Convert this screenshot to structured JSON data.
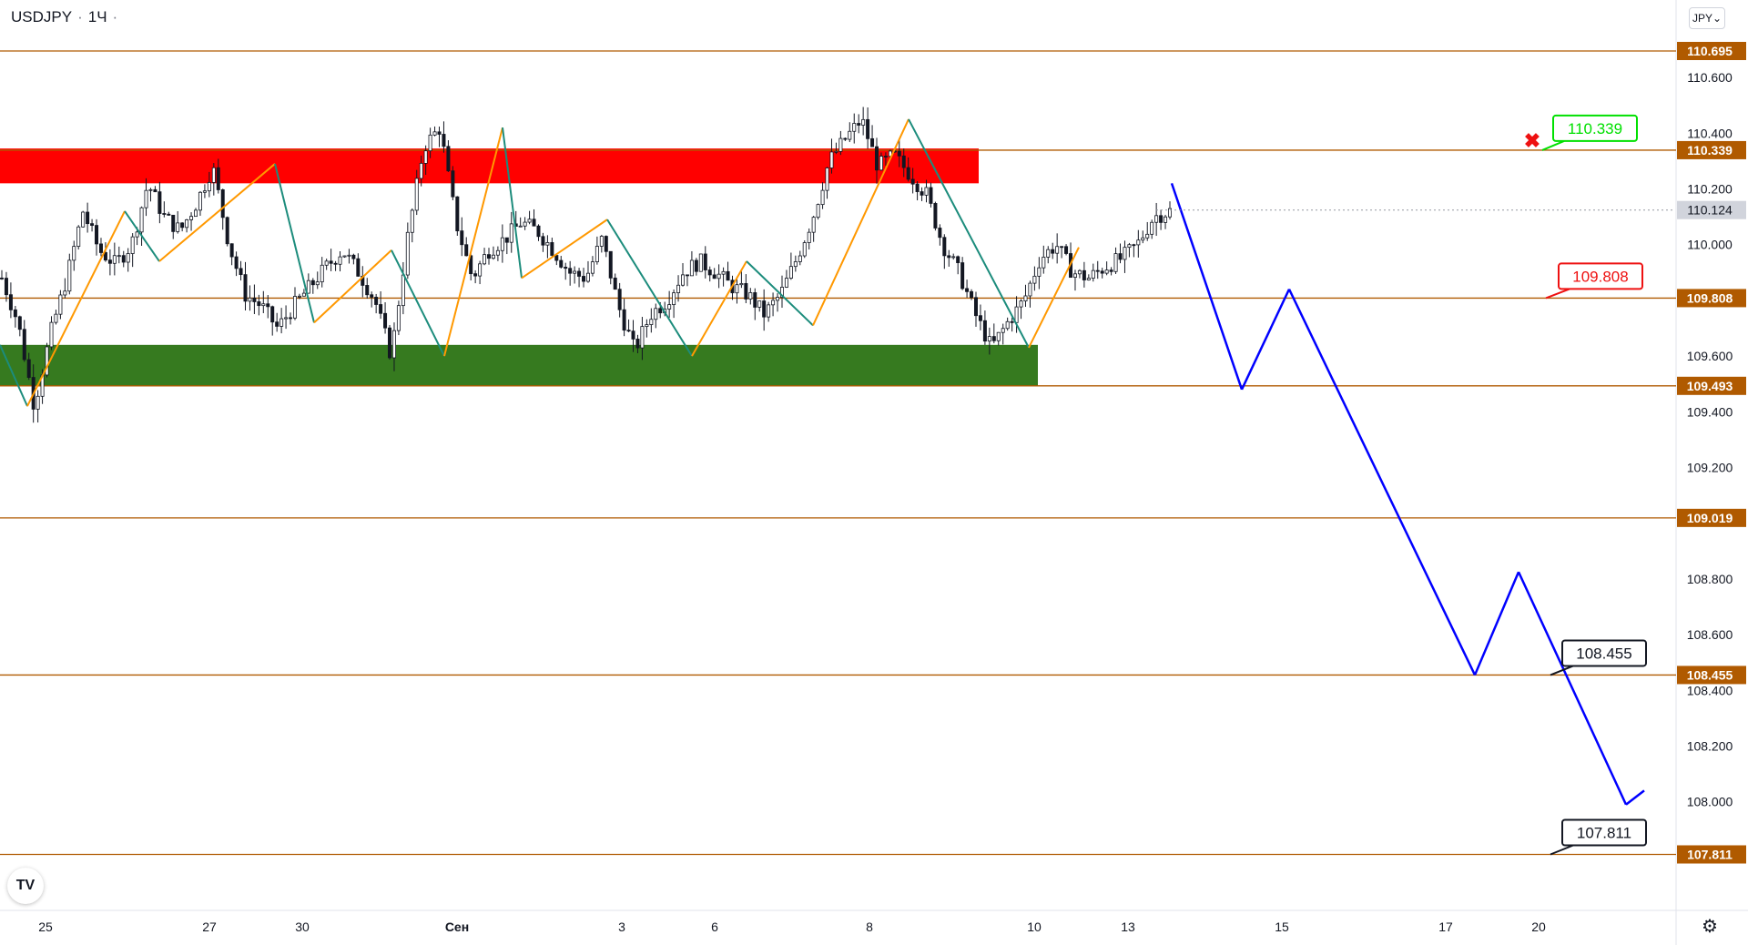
{
  "header": {
    "symbol": "USDJPY",
    "interval": "1Ч",
    "currency": "JPY"
  },
  "logo_text": "TV",
  "icons": {
    "currency_dropdown": "chevron-down-icon",
    "settings": "gear-icon",
    "logo": "tradingview-logo-icon"
  },
  "colors": {
    "level_line": "#b05a00",
    "label_bg": "#b05a00",
    "resistance_zone": "#ff0000",
    "support_zone": "#367a1f",
    "zigzag_orange": "#ff9800",
    "zigzag_teal": "#1c8c7c",
    "forecast": "#0000ff",
    "candle": "#131722",
    "green_callout": "#00e000",
    "red_callout": "#ee1111",
    "current_price_bg": "#d1d4dc"
  },
  "chart_data": {
    "type": "candlestick",
    "symbol": "USDJPY",
    "timeframe": "1Ч",
    "ylim": [
      107.6,
      110.84
    ],
    "y_ticks": [
      "110.600",
      "110.400",
      "110.200",
      "110.000",
      "109.600",
      "109.400",
      "109.200",
      "108.800",
      "108.600",
      "108.400",
      "108.200",
      "108.000"
    ],
    "x_ticks": [
      "25",
      "27",
      "30",
      "Сен",
      "3",
      "6",
      "8",
      "10",
      "13",
      "15",
      "17",
      "20"
    ],
    "levels": [
      {
        "value": 110.695,
        "label": "110.695"
      },
      {
        "value": 110.339,
        "label": "110.339"
      },
      {
        "value": 109.808,
        "label": "109.808"
      },
      {
        "value": 109.493,
        "label": "109.493"
      },
      {
        "value": 109.019,
        "label": "109.019"
      },
      {
        "value": 108.455,
        "label": "108.455"
      },
      {
        "value": 107.811,
        "label": "107.811"
      }
    ],
    "current_price": {
      "value": 110.124,
      "label": "110.124"
    },
    "zones": [
      {
        "name": "resistance",
        "from": 110.22,
        "to": 110.345
      },
      {
        "name": "support",
        "from": 109.493,
        "to": 109.64
      }
    ],
    "callouts": [
      {
        "label": "110.339",
        "value": 110.339,
        "style": "green"
      },
      {
        "label": "109.808",
        "value": 109.808,
        "style": "red"
      },
      {
        "label": "108.455",
        "value": 108.455,
        "style": "black"
      },
      {
        "label": "107.811",
        "value": 107.811,
        "style": "black"
      }
    ],
    "price_path": [
      109.88,
      109.72,
      109.42,
      109.68,
      109.88,
      110.12,
      109.98,
      109.93,
      110.0,
      110.22,
      110.1,
      110.05,
      110.15,
      110.28,
      110.0,
      109.82,
      109.78,
      109.7,
      109.78,
      109.85,
      109.92,
      109.98,
      109.9,
      109.8,
      109.6,
      110.02,
      110.35,
      110.42,
      110.08,
      109.88,
      109.98,
      110.02,
      110.08,
      110.05,
      109.98,
      109.9,
      109.88,
      110.02,
      109.78,
      109.62,
      109.75,
      109.8,
      109.9,
      109.94,
      109.9,
      109.85,
      109.82,
      109.75,
      109.82,
      109.95,
      110.1,
      110.3,
      110.38,
      110.45,
      110.28,
      110.32,
      110.25,
      110.18,
      110.0,
      109.9,
      109.75,
      109.63,
      109.72,
      109.8,
      109.95,
      110.0,
      109.9,
      109.88,
      109.92,
      109.95,
      110.0,
      110.1,
      110.12
    ]
  }
}
